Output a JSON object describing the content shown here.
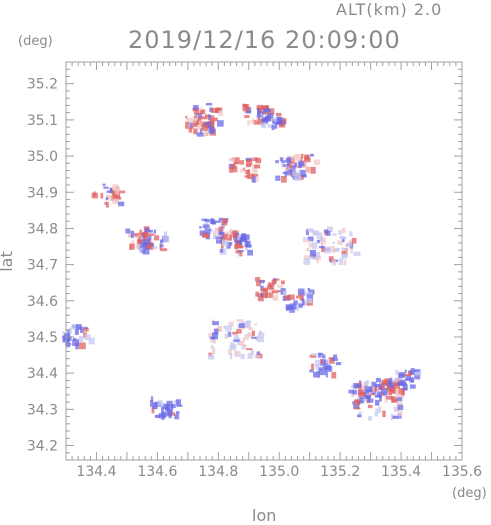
{
  "header": {
    "altitude_label": "ALT(km)  2.0",
    "datetime": "2019/12/16 20:09:00"
  },
  "axes": {
    "y_unit": "(deg)",
    "x_unit": "(deg)",
    "y_name": "lat",
    "x_name": "lon",
    "x_ticks": [
      "134.4",
      "134.6",
      "134.8",
      "135.0",
      "135.2",
      "135.4",
      "135.6"
    ],
    "y_ticks": [
      "34.2",
      "34.3",
      "34.4",
      "34.5",
      "34.6",
      "34.7",
      "34.8",
      "34.9",
      "35.0",
      "35.1",
      "35.2"
    ],
    "x_range": [
      134.3,
      135.6
    ],
    "y_range": [
      34.16,
      35.26
    ]
  },
  "colors": {
    "frame": "#a0a0a0",
    "positive": "#e06060",
    "negative": "#6a6ae8",
    "light_positive": "#f2c8c8",
    "light_negative": "#c8c8f2"
  },
  "echo_regions": [
    {
      "lon": 134.76,
      "lat": 35.12,
      "kind": "pos"
    },
    {
      "lon": 134.73,
      "lat": 35.09,
      "kind": "pos"
    },
    {
      "lon": 134.92,
      "lat": 35.12,
      "kind": "pos"
    },
    {
      "lon": 134.97,
      "lat": 35.11,
      "kind": "neg"
    },
    {
      "lon": 135.07,
      "lat": 34.98,
      "kind": "pos"
    },
    {
      "lon": 135.03,
      "lat": 34.97,
      "kind": "neg"
    },
    {
      "lon": 134.88,
      "lat": 34.97,
      "kind": "pos"
    },
    {
      "lon": 134.43,
      "lat": 34.9,
      "kind": "pos"
    },
    {
      "lon": 134.54,
      "lat": 34.78,
      "kind": "pos"
    },
    {
      "lon": 134.58,
      "lat": 34.77,
      "kind": "neg"
    },
    {
      "lon": 134.78,
      "lat": 34.81,
      "kind": "neg"
    },
    {
      "lon": 134.82,
      "lat": 34.78,
      "kind": "pos"
    },
    {
      "lon": 134.85,
      "lat": 34.76,
      "kind": "neg"
    },
    {
      "lon": 135.16,
      "lat": 34.76,
      "kind": "light"
    },
    {
      "lon": 134.96,
      "lat": 34.64,
      "kind": "pos"
    },
    {
      "lon": 135.05,
      "lat": 34.61,
      "kind": "neg"
    },
    {
      "lon": 134.85,
      "lat": 34.5,
      "kind": "light"
    },
    {
      "lon": 134.33,
      "lat": 34.51,
      "kind": "neg"
    },
    {
      "lon": 135.32,
      "lat": 34.33,
      "kind": "light"
    },
    {
      "lon": 135.27,
      "lat": 34.35,
      "kind": "neg"
    },
    {
      "lon": 135.35,
      "lat": 34.36,
      "kind": "pos"
    },
    {
      "lon": 135.4,
      "lat": 34.39,
      "kind": "neg"
    },
    {
      "lon": 134.62,
      "lat": 34.31,
      "kind": "neg"
    },
    {
      "lon": 135.14,
      "lat": 34.43,
      "kind": "neg"
    }
  ]
}
